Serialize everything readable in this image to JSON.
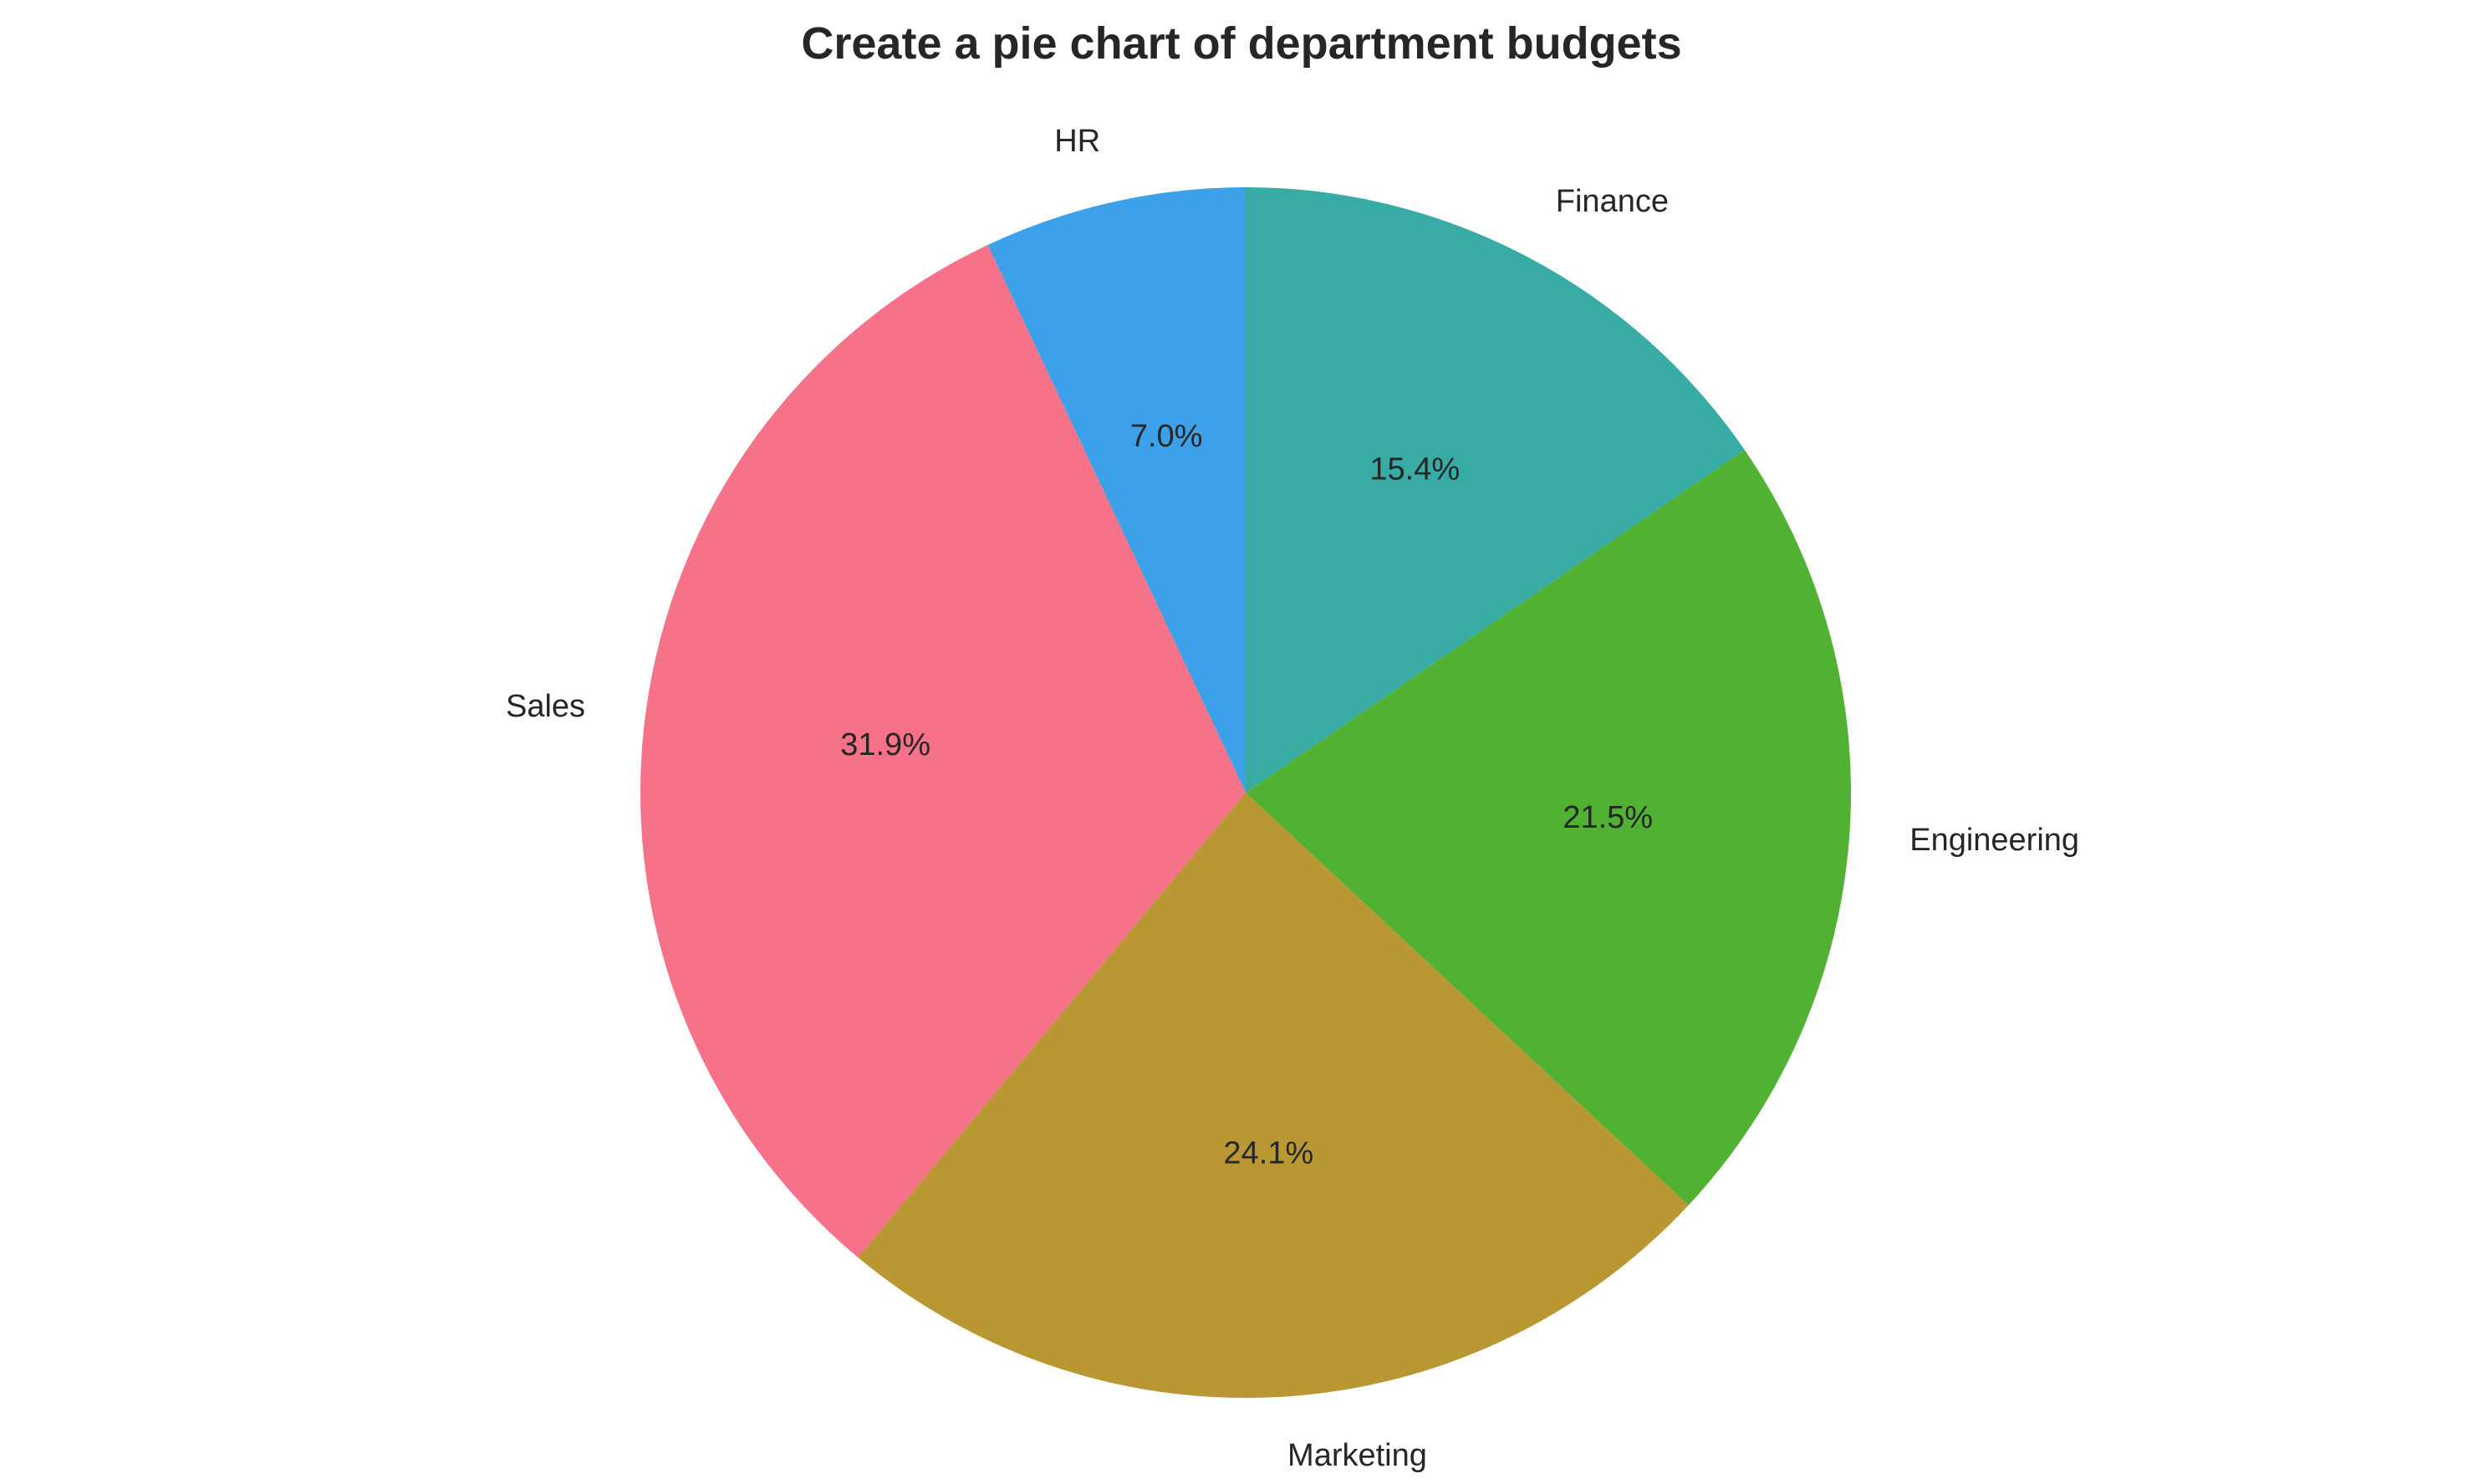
{
  "chart_data": {
    "type": "pie",
    "title": "Create a pie chart of department budgets",
    "start_angle_deg": 90,
    "direction": "counterclockwise",
    "slices": [
      {
        "label": "HR",
        "percent_label": "7.0%",
        "value": 7.0,
        "color": "#3ca1e8"
      },
      {
        "label": "Sales",
        "percent_label": "31.9%",
        "value": 31.9,
        "color": "#f67288"
      },
      {
        "label": "Marketing",
        "percent_label": "24.1%",
        "value": 24.1,
        "color": "#b99733"
      },
      {
        "label": "Engineering",
        "percent_label": "21.5%",
        "value": 21.5,
        "color": "#50b132"
      },
      {
        "label": "Finance",
        "percent_label": "15.4%",
        "value": 15.4,
        "color": "#38aba5"
      }
    ]
  }
}
